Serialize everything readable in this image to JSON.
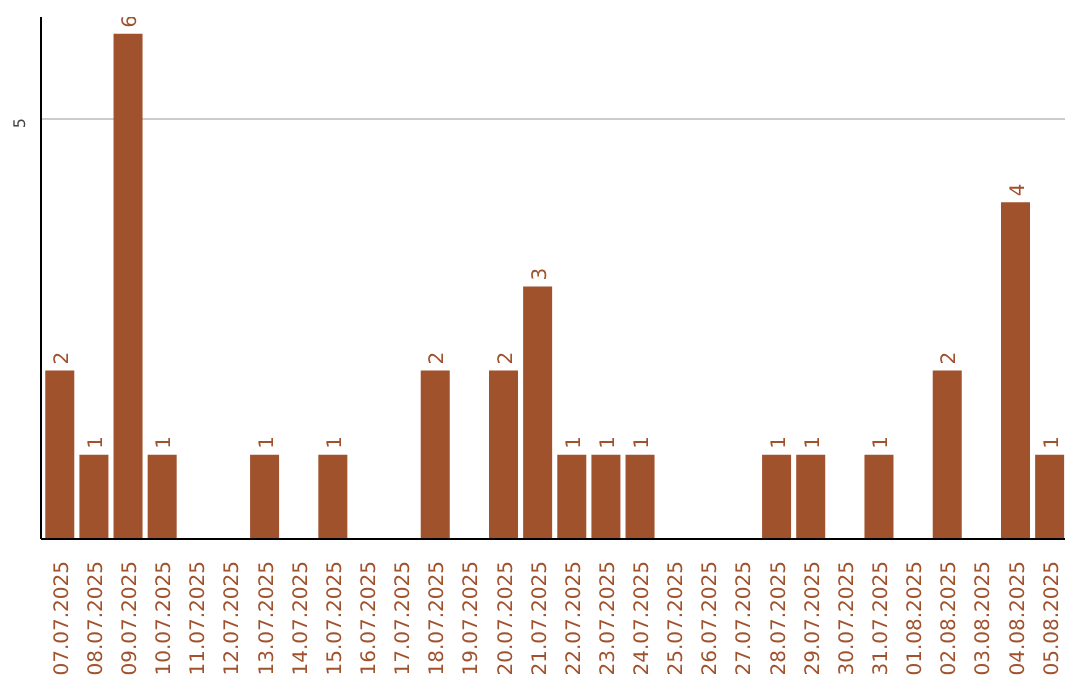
{
  "chart_data": {
    "type": "bar",
    "categories": [
      "07.07.2025",
      "08.07.2025",
      "09.07.2025",
      "10.07.2025",
      "11.07.2025",
      "12.07.2025",
      "13.07.2025",
      "14.07.2025",
      "15.07.2025",
      "16.07.2025",
      "17.07.2025",
      "18.07.2025",
      "19.07.2025",
      "20.07.2025",
      "21.07.2025",
      "22.07.2025",
      "23.07.2025",
      "24.07.2025",
      "25.07.2025",
      "26.07.2025",
      "27.07.2025",
      "28.07.2025",
      "29.07.2025",
      "30.07.2025",
      "31.07.2025",
      "01.08.2025",
      "02.08.2025",
      "03.08.2025",
      "04.08.2025",
      "05.08.2025"
    ],
    "values": [
      2,
      1,
      6,
      1,
      0,
      0,
      1,
      0,
      1,
      0,
      0,
      2,
      0,
      2,
      3,
      1,
      1,
      1,
      0,
      0,
      0,
      1,
      1,
      0,
      1,
      0,
      2,
      0,
      4,
      1
    ],
    "value_labels": [
      "2",
      "1",
      "6",
      "1",
      null,
      null,
      "1",
      null,
      "1",
      null,
      null,
      "2",
      null,
      "2",
      "3",
      "1",
      "1",
      "1",
      null,
      null,
      null,
      "1",
      "1",
      null,
      "1",
      null,
      "2",
      null,
      "4",
      "1"
    ],
    "color": "#a0522d",
    "ylim": [
      0,
      6.2
    ],
    "yticks": [
      5
    ],
    "grid": "y"
  }
}
